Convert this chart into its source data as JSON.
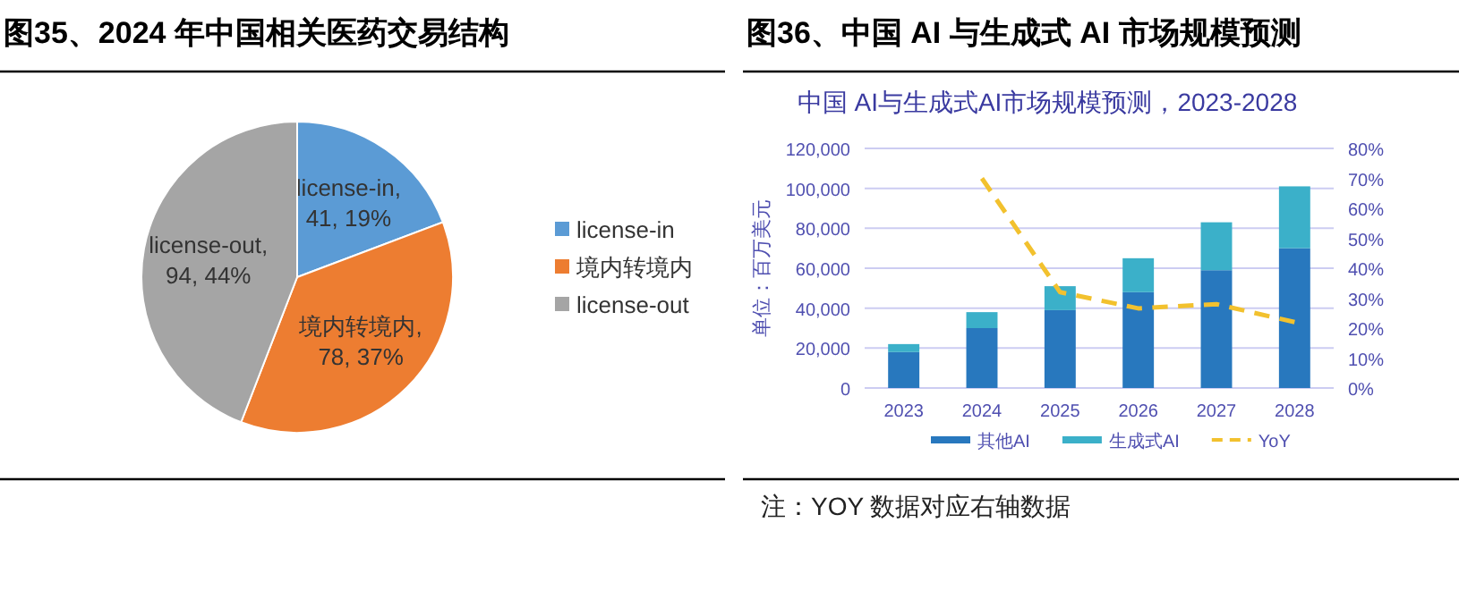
{
  "chart_data": [
    {
      "type": "pie",
      "title": "图35、2024 年中国相关医药交易结构",
      "categories": [
        "license-in",
        "境内转境内",
        "license-out"
      ],
      "values": [
        41,
        78,
        94
      ],
      "colors": [
        "#5b9bd5",
        "#ed7d31",
        "#a5a5a5"
      ],
      "value_labels": [
        "license-in, 41, 19%",
        "境内转境内, 78, 37%",
        "license-out, 94, 44%"
      ],
      "legend": "right"
    },
    {
      "type": "bar",
      "stacked": true,
      "title": "图36、中国 AI 与生成式 AI 市场规模预测",
      "subtitle": "中国 AI与生成式AI市场规模预测，2023-2028",
      "ylabel": "单位：百万美元",
      "categories": [
        "2023",
        "2024",
        "2025",
        "2026",
        "2027",
        "2028"
      ],
      "series": [
        {
          "name": "其他AI",
          "color": "#2878be",
          "values": [
            18000,
            30000,
            39000,
            48000,
            59000,
            70000
          ]
        },
        {
          "name": "生成式AI",
          "color": "#3bb0c9",
          "values": [
            4000,
            8000,
            12000,
            17000,
            24000,
            31000
          ]
        },
        {
          "name": "YoY",
          "type": "line",
          "axis": "y2",
          "color": "#f2c12e",
          "line_style": "dashed",
          "values": [
            null,
            70,
            32,
            26.6,
            28,
            22
          ]
        }
      ],
      "ylim": [
        0,
        120000
      ],
      "yticks": [
        0,
        {
          "value": 20000,
          "label": "20,000"
        },
        {
          "value": 40000,
          "label": "40,000"
        },
        {
          "value": 60000,
          "label": "60,000"
        },
        {
          "value": 80000,
          "label": "80,000"
        },
        {
          "value": 100000,
          "label": "100,000"
        },
        {
          "value": 120000,
          "label": "120,000"
        }
      ],
      "y2lim": [
        0,
        80
      ],
      "y2ticks": [
        {
          "value": 0,
          "label": "0%"
        },
        {
          "value": 10,
          "label": "10%"
        },
        {
          "value": 20,
          "label": "20%"
        },
        {
          "value": 30,
          "label": "30%"
        },
        {
          "value": 40,
          "label": "40%"
        },
        {
          "value": 50,
          "label": "50%"
        },
        {
          "value": 60,
          "label": "60%"
        },
        {
          "value": 70,
          "label": "70%"
        },
        {
          "value": 80,
          "label": "80%"
        }
      ],
      "grid": "y",
      "legend": "bottom",
      "marker": "none",
      "annotations": [
        "注：YOY 数据对应右轴数据"
      ]
    }
  ]
}
